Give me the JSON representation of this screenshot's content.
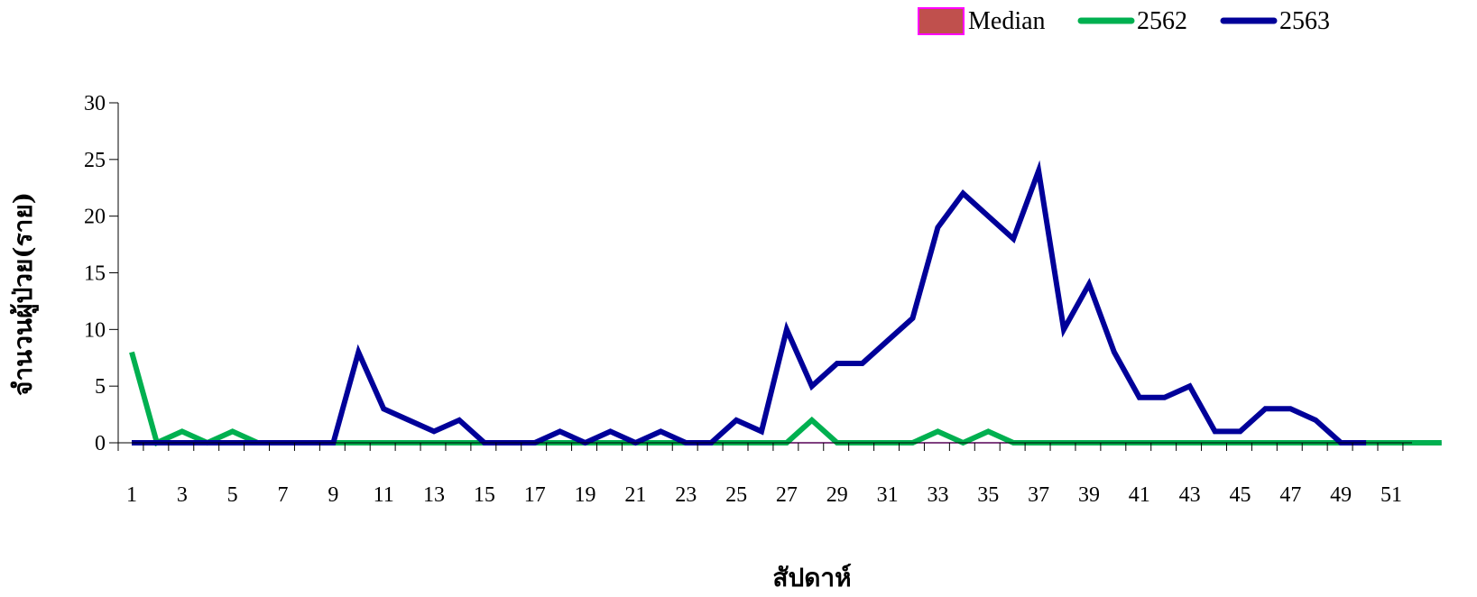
{
  "chart_data": {
    "type": "line",
    "title": "",
    "xlabel": "สัปดาห์",
    "ylabel": "จำนวนผู้ป่วย(ราย)",
    "ylim": [
      0,
      30
    ],
    "yticks": [
      0,
      5,
      10,
      15,
      20,
      25,
      30
    ],
    "xlim": [
      1,
      53
    ],
    "xtick_labels": [
      1,
      3,
      5,
      7,
      9,
      11,
      13,
      15,
      17,
      19,
      21,
      23,
      25,
      27,
      29,
      31,
      33,
      35,
      37,
      39,
      41,
      43,
      45,
      47,
      49,
      51
    ],
    "grid": false,
    "legend_position": "top-right",
    "series": [
      {
        "name": "Median",
        "kind": "area",
        "color": "#c0504d",
        "border_color": "#ff00ff",
        "x": [
          1,
          2,
          3,
          4,
          5,
          6,
          7,
          8,
          9,
          10,
          11,
          12,
          13,
          14,
          15,
          16,
          17,
          18,
          19,
          20,
          21,
          22,
          23,
          24,
          25,
          26,
          27,
          28,
          29,
          30,
          31,
          32,
          33,
          34,
          35,
          36,
          37,
          38,
          39,
          40,
          41,
          42,
          43,
          44,
          45,
          46,
          47,
          48,
          49,
          50,
          51,
          52,
          53
        ],
        "values": [
          0,
          0,
          0,
          0,
          0,
          0,
          0,
          0,
          0,
          0,
          0,
          0,
          0,
          0,
          0,
          0,
          0,
          0,
          0,
          0,
          0,
          0,
          0,
          0,
          0,
          0,
          0,
          0,
          0,
          0,
          0,
          0,
          0,
          0,
          0,
          0,
          0,
          0,
          0,
          0,
          0,
          0,
          0,
          0,
          0,
          0,
          0,
          0,
          0,
          0,
          0,
          0,
          0
        ]
      },
      {
        "name": "2562",
        "kind": "line",
        "color": "#00b050",
        "x": [
          1,
          2,
          3,
          4,
          5,
          6,
          7,
          8,
          9,
          10,
          11,
          12,
          13,
          14,
          15,
          16,
          17,
          18,
          19,
          20,
          21,
          22,
          23,
          24,
          25,
          26,
          27,
          28,
          29,
          30,
          31,
          32,
          33,
          34,
          35,
          36,
          37,
          38,
          39,
          40,
          41,
          42,
          43,
          44,
          45,
          46,
          47,
          48,
          49,
          50,
          51,
          52,
          53
        ],
        "values": [
          8,
          0,
          1,
          0,
          1,
          0,
          0,
          0,
          0,
          0,
          0,
          0,
          0,
          0,
          0,
          0,
          0,
          0,
          0,
          0,
          0,
          0,
          0,
          0,
          0,
          0,
          0,
          2,
          0,
          0,
          0,
          0,
          1,
          0,
          1,
          0,
          0,
          0,
          0,
          0,
          0,
          0,
          0,
          0,
          0,
          0,
          0,
          0,
          0,
          0,
          0,
          0,
          0
        ]
      },
      {
        "name": "2563",
        "kind": "line",
        "color": "#000099",
        "x": [
          1,
          2,
          3,
          4,
          5,
          6,
          7,
          8,
          9,
          10,
          11,
          12,
          13,
          14,
          15,
          16,
          17,
          18,
          19,
          20,
          21,
          22,
          23,
          24,
          25,
          26,
          27,
          28,
          29,
          30,
          31,
          32,
          33,
          34,
          35,
          36,
          37,
          38,
          39,
          40,
          41,
          42,
          43,
          44,
          45,
          46,
          47,
          48,
          49,
          50
        ],
        "values": [
          0,
          0,
          0,
          0,
          0,
          0,
          0,
          0,
          0,
          8,
          3,
          2,
          1,
          2,
          0,
          0,
          0,
          1,
          0,
          1,
          0,
          1,
          0,
          0,
          2,
          1,
          10,
          5,
          7,
          7,
          9,
          11,
          19,
          22,
          20,
          18,
          24,
          10,
          14,
          8,
          4,
          4,
          5,
          1,
          1,
          3,
          3,
          2,
          0,
          0
        ]
      }
    ]
  }
}
